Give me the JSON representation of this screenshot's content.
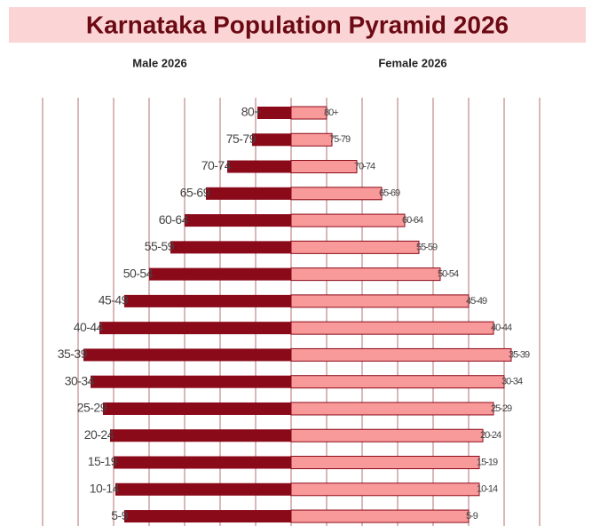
{
  "chart_data": {
    "type": "pyramid",
    "title": "Karnataka Population Pyramid 2026",
    "categories": [
      "80+",
      "75-79",
      "70-74",
      "65-69",
      "60-64",
      "55-59",
      "50-54",
      "45-49",
      "40-44",
      "35-39",
      "30-34",
      "25-29",
      "20-24",
      "15-19",
      "10-14",
      "5-9"
    ],
    "series": [
      {
        "name": "Male 2026",
        "color": "#8b0a1a",
        "values": [
          0.95,
          1.1,
          1.8,
          2.4,
          3.0,
          3.4,
          4.0,
          4.7,
          5.4,
          5.85,
          5.65,
          5.3,
          5.1,
          5.0,
          4.95,
          4.7
        ]
      },
      {
        "name": "Female 2026",
        "color": "#f99a9a",
        "values": [
          1.0,
          1.15,
          1.85,
          2.55,
          3.2,
          3.6,
          4.2,
          5.0,
          5.7,
          6.2,
          6.0,
          5.7,
          5.4,
          5.3,
          5.3,
          5.0
        ]
      }
    ],
    "xlim": [
      -7.1,
      7.3
    ],
    "xticks": [
      -7,
      -6,
      -5,
      -4,
      -3,
      -2,
      -1,
      0,
      1,
      2,
      3,
      4,
      5,
      6,
      7
    ],
    "grid": true
  }
}
